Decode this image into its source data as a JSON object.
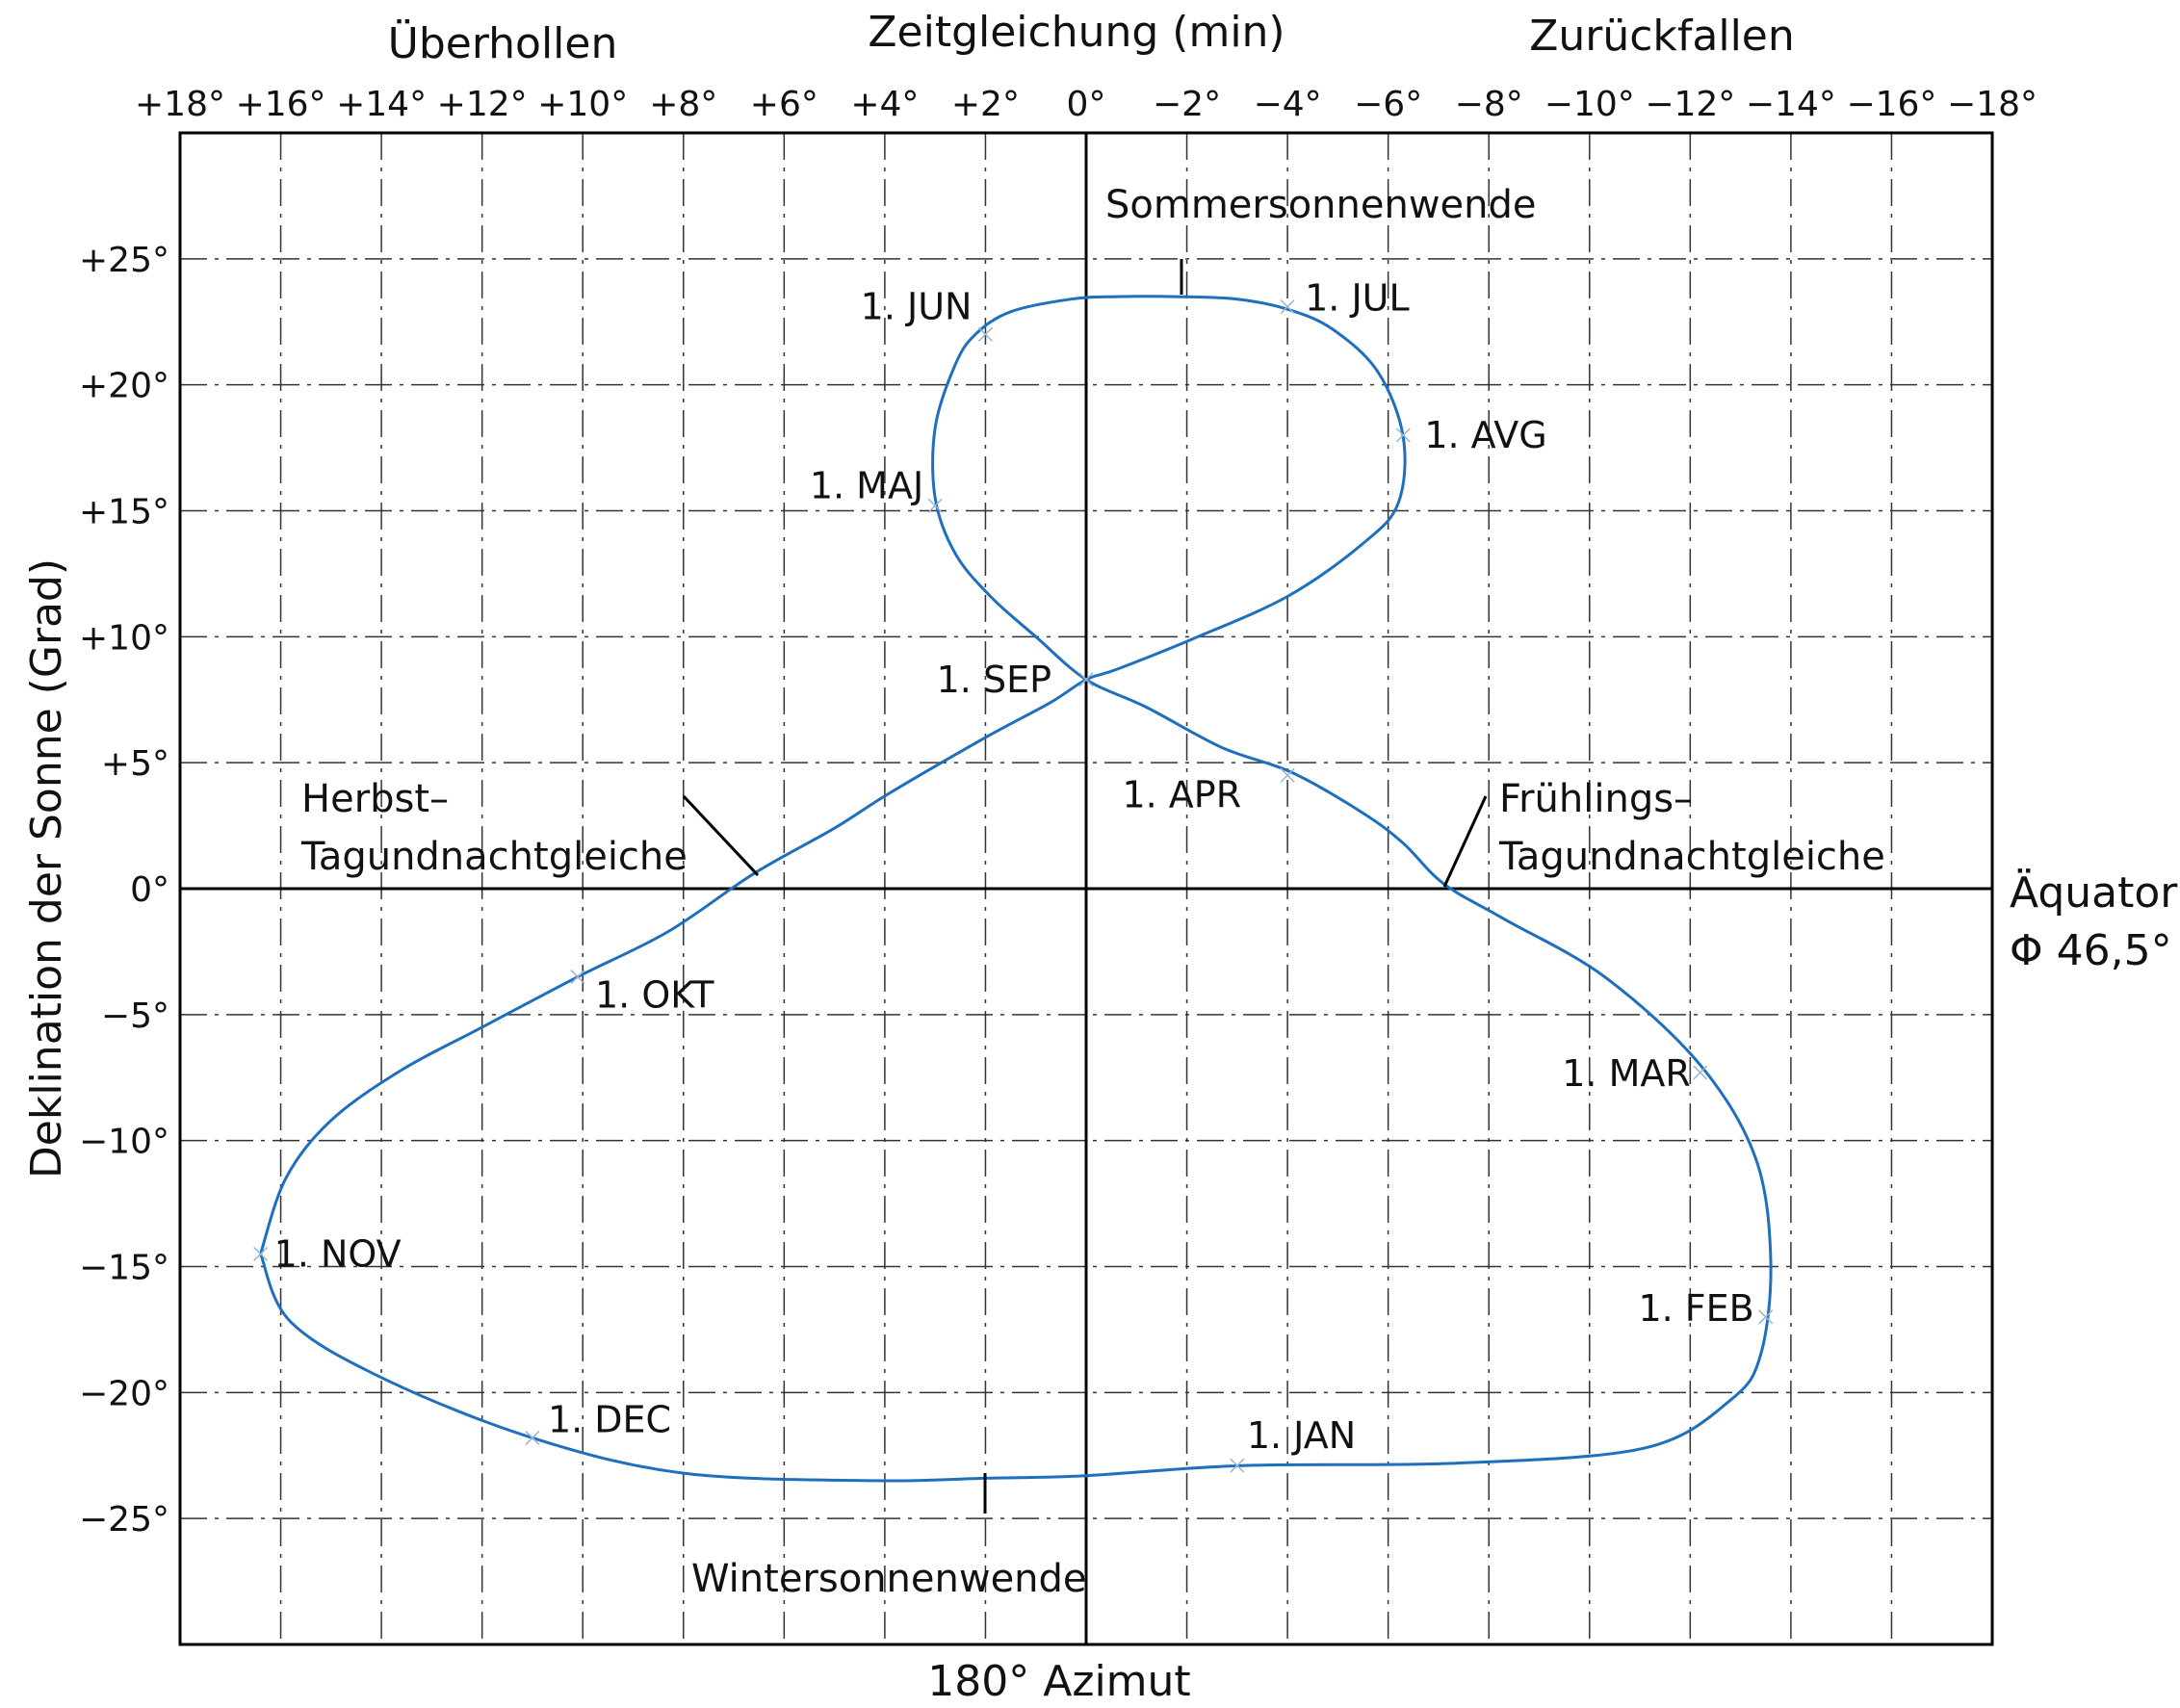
{
  "chart_data": {
    "type": "line",
    "top_header": {
      "left": "Überhollen",
      "center": "Zeitgleichung (min)",
      "right": "Zurückfallen"
    },
    "ylabel": "Deklination der Sonne (Grad)",
    "xlabel_bottom": "180° Azimut",
    "right_label": [
      "Äquator,",
      "Φ 46,5°"
    ],
    "x_ticks": [
      {
        "value": 18,
        "label": "+18°"
      },
      {
        "value": 16,
        "label": "+16°"
      },
      {
        "value": 14,
        "label": "+14°"
      },
      {
        "value": 12,
        "label": "+12°"
      },
      {
        "value": 10,
        "label": "+10°"
      },
      {
        "value": 8,
        "label": "+8°"
      },
      {
        "value": 6,
        "label": "+6°"
      },
      {
        "value": 4,
        "label": "+4°"
      },
      {
        "value": 2,
        "label": "+2°"
      },
      {
        "value": 0,
        "label": "0°"
      },
      {
        "value": -2,
        "label": "−2°"
      },
      {
        "value": -4,
        "label": "−4°"
      },
      {
        "value": -6,
        "label": "−6°"
      },
      {
        "value": -8,
        "label": "−8°"
      },
      {
        "value": -10,
        "label": "−10°"
      },
      {
        "value": -12,
        "label": "−12°"
      },
      {
        "value": -14,
        "label": "−14°"
      },
      {
        "value": -16,
        "label": "−16°"
      },
      {
        "value": -18,
        "label": "−18°"
      }
    ],
    "y_ticks": [
      {
        "value": 25,
        "label": "+25°"
      },
      {
        "value": 20,
        "label": "+20°"
      },
      {
        "value": 15,
        "label": "+15°"
      },
      {
        "value": 10,
        "label": "+10°"
      },
      {
        "value": 5,
        "label": "+5°"
      },
      {
        "value": 0,
        "label": "0°"
      },
      {
        "value": -5,
        "label": "−5°"
      },
      {
        "value": -10,
        "label": "−10°"
      },
      {
        "value": -15,
        "label": "−15°"
      },
      {
        "value": -20,
        "label": "−20°"
      },
      {
        "value": -25,
        "label": "−25°"
      }
    ],
    "xlim": [
      18,
      -18
    ],
    "ylim": [
      -30,
      30
    ],
    "grid": true,
    "series": [
      {
        "color": "#1f6fbf",
        "points": [
          [
            16.4,
            -14.5
          ],
          [
            15.9,
            -11.5
          ],
          [
            15.0,
            -9.2
          ],
          [
            13.6,
            -7.2
          ],
          [
            12.0,
            -5.5
          ],
          [
            10.1,
            -3.5
          ],
          [
            8.3,
            -1.7
          ],
          [
            6.6,
            0.6
          ],
          [
            5.0,
            2.4
          ],
          [
            3.9,
            3.8
          ],
          [
            2.0,
            6.0
          ],
          [
            0.7,
            7.4
          ],
          [
            0.0,
            8.3
          ],
          [
            -0.6,
            8.7
          ],
          [
            -2.1,
            9.9
          ],
          [
            -4.0,
            11.6
          ],
          [
            -5.5,
            13.7
          ],
          [
            -6.2,
            15.3
          ],
          [
            -6.3,
            17.9
          ],
          [
            -5.8,
            20.5
          ],
          [
            -4.9,
            22.2
          ],
          [
            -4.0,
            23.0
          ],
          [
            -3.0,
            23.4
          ],
          [
            -1.8,
            23.5
          ],
          [
            -0.6,
            23.5
          ],
          [
            0.3,
            23.4
          ],
          [
            1.5,
            22.9
          ],
          [
            2.2,
            22.0
          ],
          [
            2.6,
            20.8
          ],
          [
            3.0,
            18.3
          ],
          [
            3.0,
            15.5
          ],
          [
            2.6,
            13.3
          ],
          [
            1.9,
            11.6
          ],
          [
            1.0,
            10.0
          ],
          [
            0.0,
            8.3
          ],
          [
            -1.2,
            7.2
          ],
          [
            -2.7,
            5.6
          ],
          [
            -4.1,
            4.6
          ],
          [
            -5.5,
            3.0
          ],
          [
            -6.3,
            1.8
          ],
          [
            -7.1,
            0.2
          ],
          [
            -8.3,
            -1.2
          ],
          [
            -10.3,
            -3.5
          ],
          [
            -12.2,
            -7.0
          ],
          [
            -13.3,
            -10.7
          ],
          [
            -13.6,
            -14.8
          ],
          [
            -13.4,
            -18.5
          ],
          [
            -12.8,
            -20.3
          ],
          [
            -11.1,
            -22.2
          ],
          [
            -7.4,
            -22.8
          ],
          [
            -3.1,
            -22.9
          ],
          [
            0.0,
            -23.3
          ],
          [
            2.0,
            -23.4
          ],
          [
            4.2,
            -23.5
          ],
          [
            8.0,
            -23.2
          ],
          [
            11.0,
            -21.8
          ],
          [
            13.9,
            -19.5
          ],
          [
            15.8,
            -17.2
          ],
          [
            16.4,
            -14.5
          ]
        ]
      }
    ],
    "month_markers": [
      {
        "label": "1. JAN",
        "x": -3.0,
        "y": -22.9
      },
      {
        "label": "1. FEB",
        "x": -13.5,
        "y": -17.0
      },
      {
        "label": "1. MAR",
        "x": -12.2,
        "y": -7.3
      },
      {
        "label": "1. APR",
        "x": -4.0,
        "y": 4.5
      },
      {
        "label": "1. MAJ",
        "x": 3.0,
        "y": 15.2
      },
      {
        "label": "1. JUN",
        "x": 2.0,
        "y": 22.0
      },
      {
        "label": "1. JUL",
        "x": -4.0,
        "y": 23.1
      },
      {
        "label": "1. AVG",
        "x": -6.3,
        "y": 18.0
      },
      {
        "label": "1. SEP",
        "x": 0.0,
        "y": 8.3
      },
      {
        "label": "1. OKT",
        "x": 10.1,
        "y": -3.5
      },
      {
        "label": "1. NOV",
        "x": 16.4,
        "y": -14.5
      },
      {
        "label": "1. DEC",
        "x": 11.0,
        "y": -21.8
      }
    ],
    "annotations": {
      "summer": "Sommersonnenwende",
      "winter": "Wintersonnenwende",
      "autumn": [
        "Herbst–",
        "Tagundnachtgleiche"
      ],
      "spring": [
        "Frühlings–",
        "Tagundnachtgleiche"
      ]
    }
  }
}
